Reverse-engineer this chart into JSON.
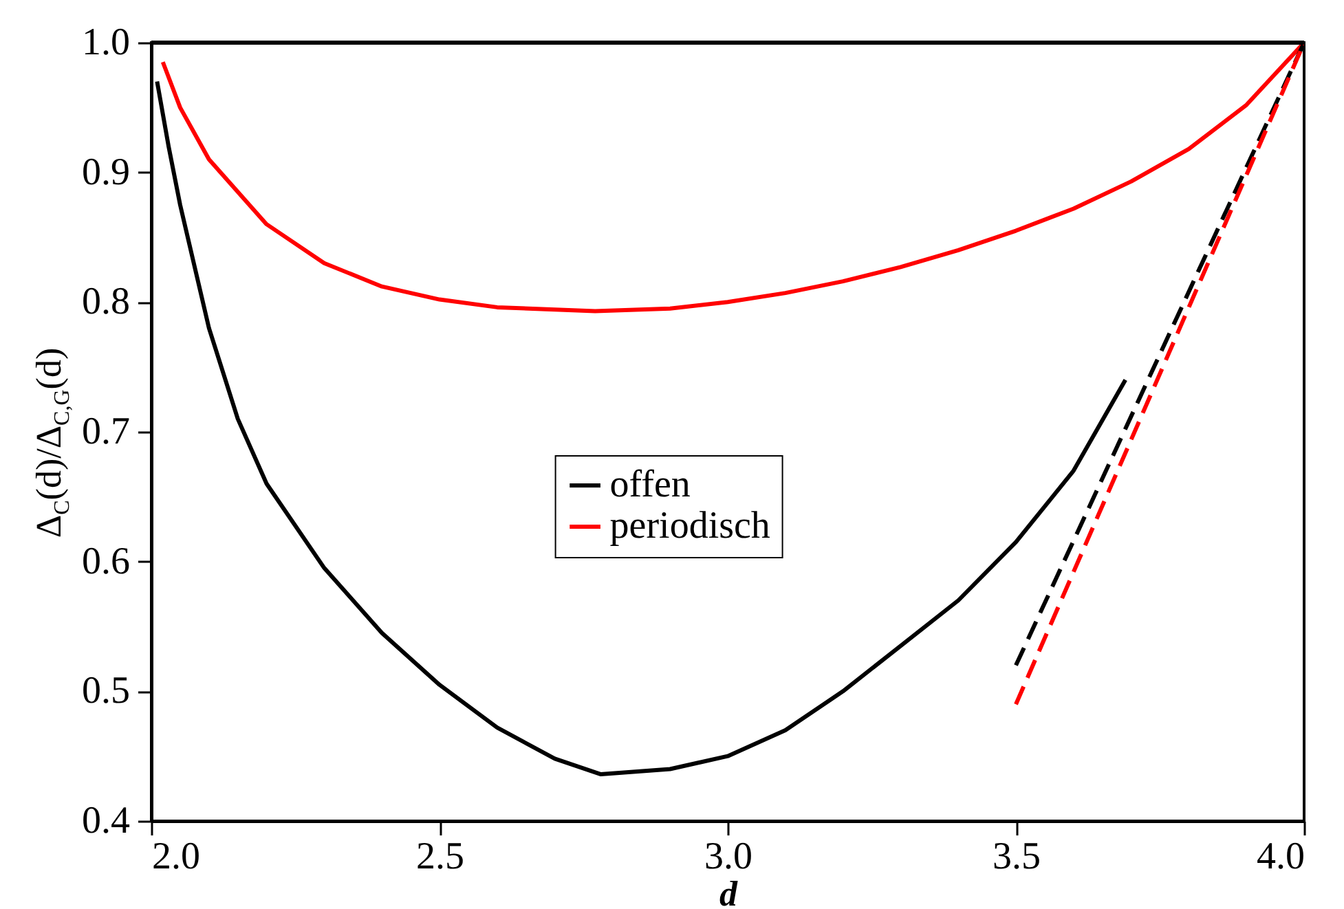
{
  "chart_data": {
    "type": "line",
    "xlabel": "d",
    "ylabel": "Δ$_{C}$(d)/Δ$_{C,G}$(d)",
    "xlim": [
      2,
      4
    ],
    "xticks": [
      {
        "value": 2,
        "label": "2.0"
      },
      2.5,
      {
        "value": 3,
        "label": "3.0"
      },
      3.5,
      {
        "value": 4,
        "label": "4.0"
      }
    ],
    "ylim": [
      0.4,
      1
    ],
    "yticks": [
      0.4,
      0.5,
      0.6,
      0.7,
      0.8,
      0.9,
      {
        "value": 1,
        "label": "1.0"
      }
    ],
    "grid": false,
    "legend": "center",
    "marker": "none",
    "ref_lines": [
      {
        "axis": "y",
        "value": 1,
        "color": "#000000"
      }
    ],
    "series": [
      {
        "name": "offen",
        "color": "#000000",
        "line_style": "solid",
        "x": [
          2.01,
          2.03,
          2.05,
          2.1,
          2.15,
          2.2,
          2.3,
          2.4,
          2.5,
          2.6,
          2.7,
          2.78,
          2.9,
          3.0,
          3.1,
          3.2,
          3.3,
          3.4,
          3.5,
          3.6,
          3.69
        ],
        "values": [
          0.97,
          0.92,
          0.875,
          0.78,
          0.71,
          0.66,
          0.595,
          0.545,
          0.505,
          0.472,
          0.448,
          0.436,
          0.44,
          0.45,
          0.47,
          0.5,
          0.535,
          0.57,
          0.615,
          0.67,
          0.74
        ]
      },
      {
        "name": "periodisch",
        "color": "#ff0000",
        "line_style": "solid",
        "x": [
          2.02,
          2.05,
          2.1,
          2.2,
          2.3,
          2.4,
          2.5,
          2.6,
          2.77,
          2.9,
          3.0,
          3.1,
          3.2,
          3.3,
          3.4,
          3.5,
          3.6,
          3.7,
          3.8,
          3.9,
          4.0
        ],
        "values": [
          0.985,
          0.95,
          0.91,
          0.86,
          0.83,
          0.812,
          0.802,
          0.796,
          0.793,
          0.795,
          0.8,
          0.807,
          0.816,
          0.827,
          0.84,
          0.855,
          0.872,
          0.893,
          0.918,
          0.952,
          1.0
        ]
      },
      {
        "color": "#000000",
        "line_style": "dashed",
        "x": [
          3.5,
          4.0
        ],
        "values": [
          0.52,
          1.0
        ]
      },
      {
        "color": "#ff0000",
        "line_style": "dashed",
        "x": [
          3.5,
          4.0
        ],
        "values": [
          0.49,
          1.0
        ]
      }
    ]
  }
}
